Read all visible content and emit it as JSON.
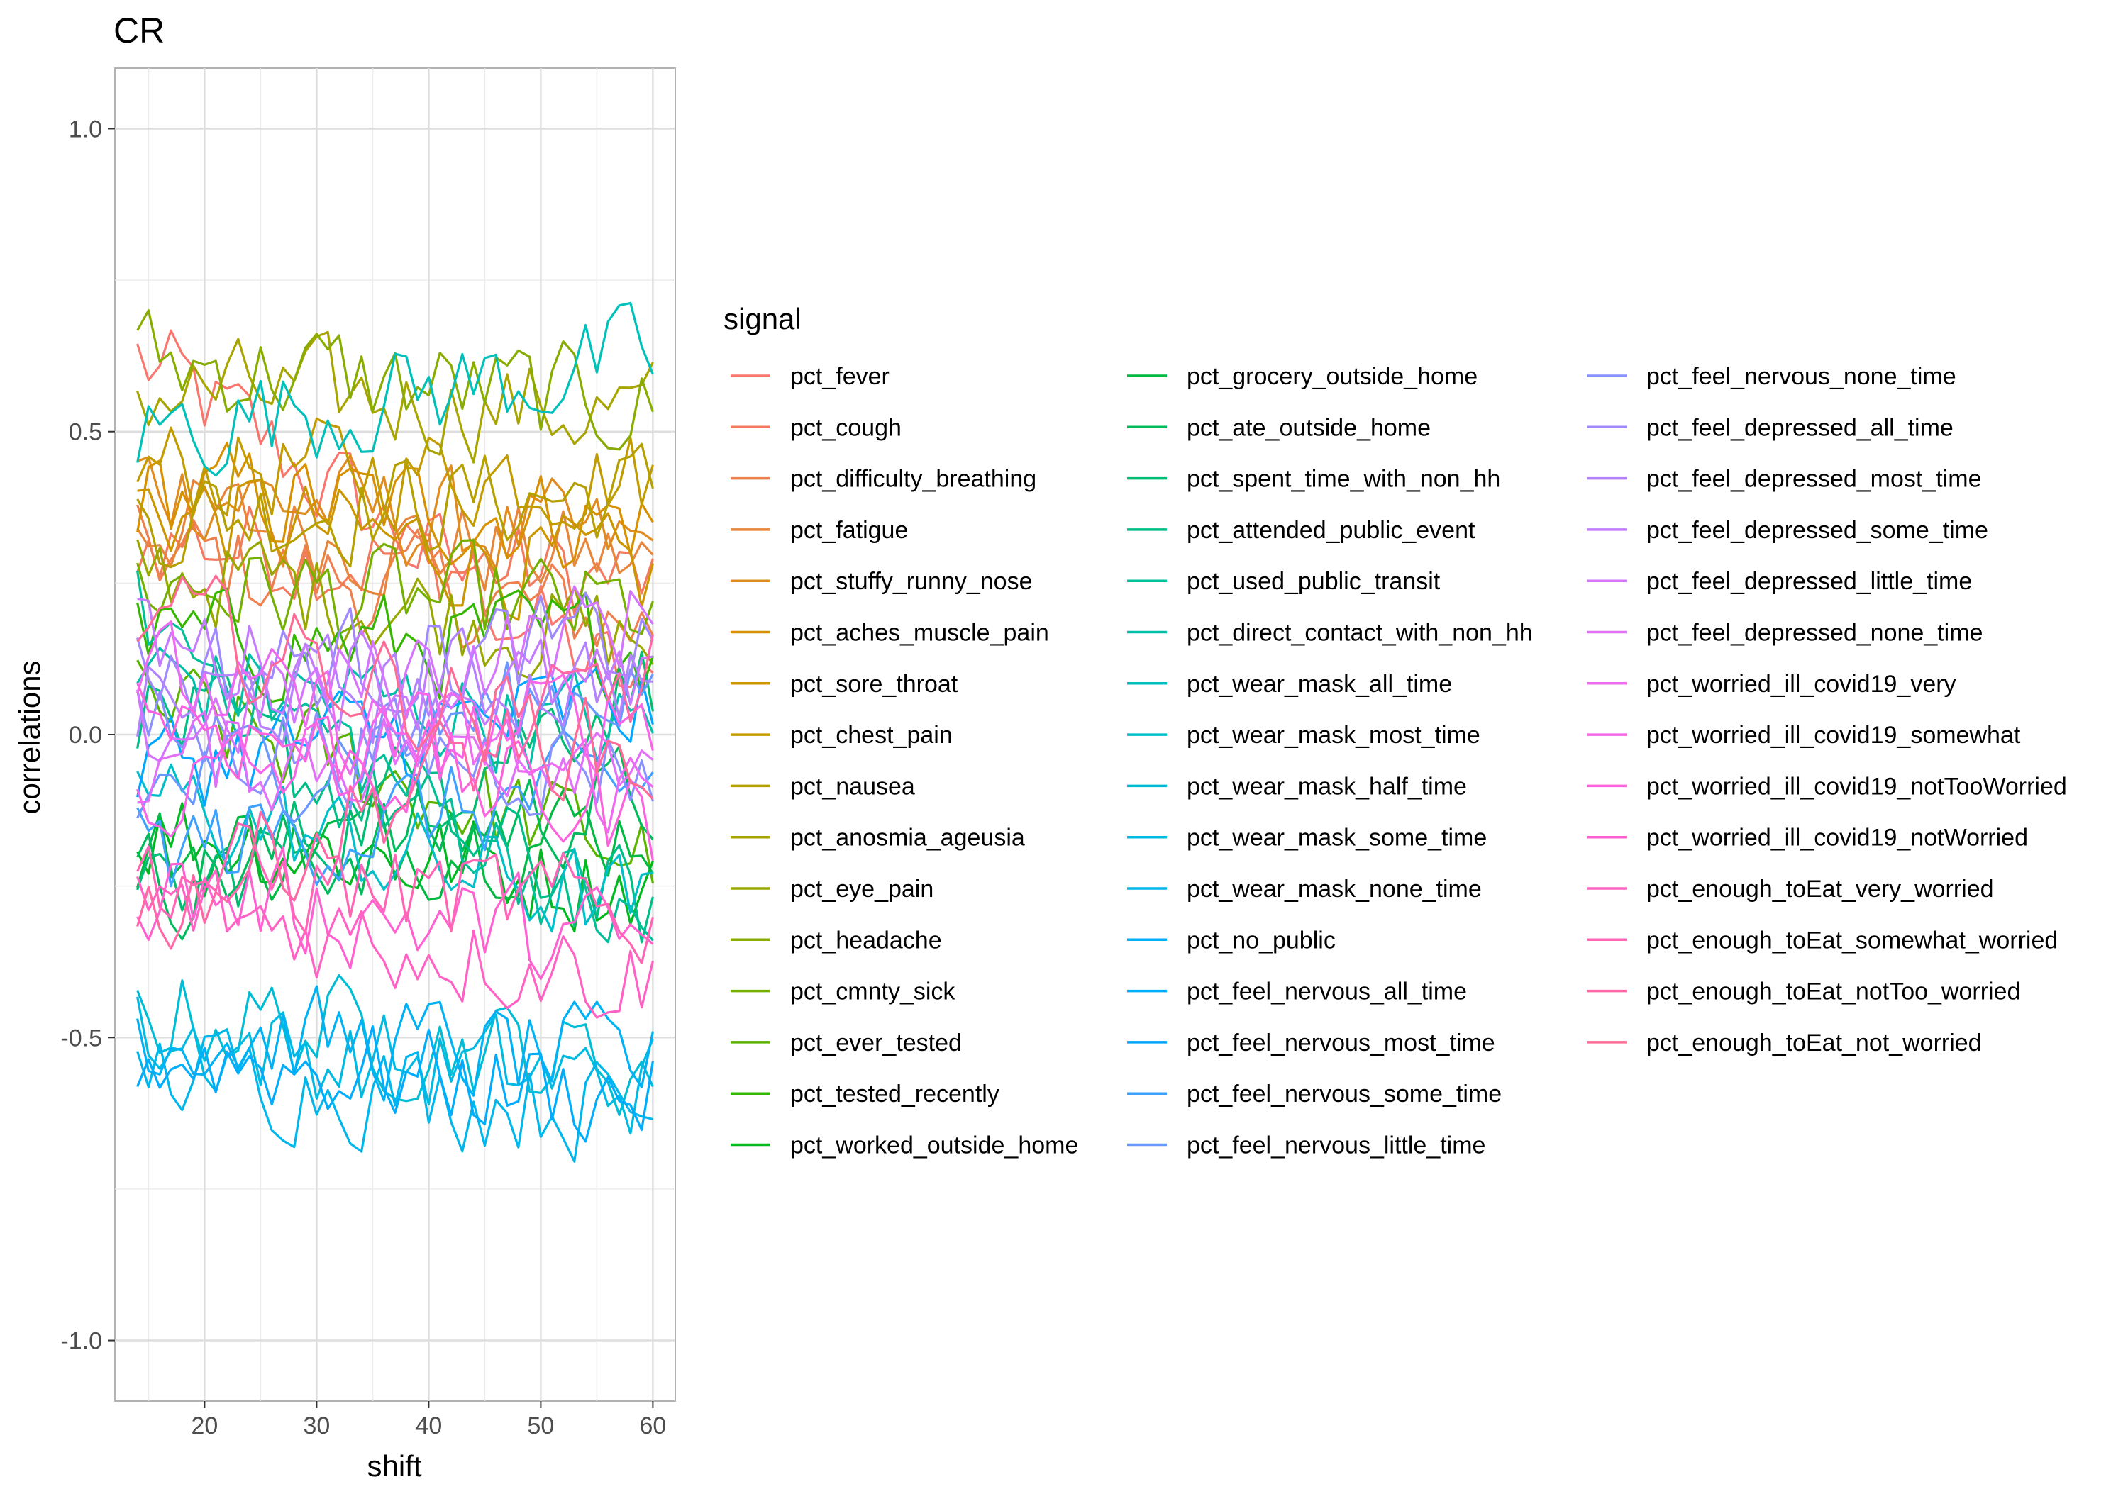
{
  "chart_data": {
    "type": "line",
    "title": "CR",
    "xlabel": "shift",
    "ylabel": "correlations",
    "xlim": [
      12,
      62
    ],
    "ylim": [
      -1.1,
      1.1
    ],
    "x_ticks": [
      20,
      30,
      40,
      50,
      60
    ],
    "y_ticks": [
      1.0,
      0.5,
      0.0,
      -0.5,
      -1.0
    ],
    "y_tick_labels": [
      "1.0",
      "0.5",
      "0.0",
      "-0.5",
      "-1.0"
    ],
    "grid": true,
    "legend_title": "signal",
    "legend_position": "right",
    "x": [
      14,
      15,
      16,
      17,
      18,
      19,
      20,
      21,
      22,
      23,
      24,
      25,
      26,
      27,
      28,
      29,
      30,
      31,
      32,
      33,
      34,
      35,
      36,
      37,
      38,
      39,
      40,
      41,
      42,
      43,
      44,
      45,
      46,
      47,
      48,
      49,
      50,
      51,
      52,
      53,
      54,
      55,
      56,
      57,
      58,
      59,
      60
    ],
    "series": [
      {
        "name": "pct_fever",
        "base": [
          0.62,
          0.05
        ],
        "color": "#F8766D"
      },
      {
        "name": "pct_cough",
        "base": [
          0.33,
          0.25
        ],
        "color": "#F47A5F"
      },
      {
        "name": "pct_difficulty_breathing",
        "base": [
          0.3,
          0.18
        ],
        "color": "#EE7F4E"
      },
      {
        "name": "pct_fatigue",
        "base": [
          0.36,
          0.28
        ],
        "color": "#E7853A"
      },
      {
        "name": "pct_stuffy_runny_nose",
        "base": [
          0.42,
          0.3
        ],
        "color": "#DF8B1F"
      },
      {
        "name": "pct_aches_muscle_pain",
        "base": [
          0.4,
          0.35
        ],
        "color": "#D69000"
      },
      {
        "name": "pct_sore_throat",
        "base": [
          0.38,
          0.25
        ],
        "color": "#CC9600"
      },
      {
        "name": "pct_chest_pain",
        "base": [
          0.44,
          0.43
        ],
        "color": "#C19B00"
      },
      {
        "name": "pct_nausea",
        "base": [
          0.36,
          0.4
        ],
        "color": "#B5A000"
      },
      {
        "name": "pct_anosmia_ageusia",
        "base": [
          0.57,
          0.53
        ],
        "color": "#A8A400"
      },
      {
        "name": "pct_eye_pain",
        "base": [
          0.28,
          0.15
        ],
        "color": "#99A800"
      },
      {
        "name": "pct_headache",
        "base": [
          0.62,
          0.54
        ],
        "color": "#88AC00"
      },
      {
        "name": "pct_cmnty_sick",
        "base": [
          0.25,
          0.2
        ],
        "color": "#74B000"
      },
      {
        "name": "pct_ever_tested",
        "base": [
          0.05,
          -0.2
        ],
        "color": "#5BB300"
      },
      {
        "name": "pct_tested_recently",
        "base": [
          0.15,
          0.15
        ],
        "color": "#35B600"
      },
      {
        "name": "pct_worked_outside_home",
        "base": [
          -0.15,
          -0.25
        ],
        "color": "#00B81F"
      },
      {
        "name": "pct_grocery_outside_home",
        "base": [
          -0.2,
          -0.15
        ],
        "color": "#00BA42"
      },
      {
        "name": "pct_ate_outside_home",
        "base": [
          -0.25,
          -0.1
        ],
        "color": "#00BB5C"
      },
      {
        "name": "pct_spent_time_with_non_hh",
        "base": [
          -0.3,
          0.1
        ],
        "color": "#00BD73"
      },
      {
        "name": "pct_attended_public_event",
        "base": [
          0.05,
          -0.3
        ],
        "color": "#00BE87"
      },
      {
        "name": "pct_used_public_transit",
        "base": [
          0.2,
          -0.35
        ],
        "color": "#00BF99"
      },
      {
        "name": "pct_direct_contact_with_non_hh",
        "base": [
          0.1,
          0.0
        ],
        "color": "#00C0AA"
      },
      {
        "name": "pct_wear_mask_all_time",
        "base": [
          0.5,
          0.62
        ],
        "color": "#00C0BA"
      },
      {
        "name": "pct_wear_mask_most_time",
        "base": [
          -0.1,
          -0.3
        ],
        "color": "#00BFC8"
      },
      {
        "name": "pct_wear_mask_half_time",
        "base": [
          -0.45,
          -0.55
        ],
        "color": "#00BDD5"
      },
      {
        "name": "pct_wear_mask_some_time",
        "base": [
          -0.5,
          -0.58
        ],
        "color": "#00BAE1"
      },
      {
        "name": "pct_wear_mask_none_time",
        "base": [
          -0.55,
          -0.62
        ],
        "color": "#00B6EB"
      },
      {
        "name": "pct_no_public",
        "base": [
          -0.48,
          -0.55
        ],
        "color": "#00B1F4"
      },
      {
        "name": "pct_feel_nervous_all_time",
        "base": [
          -0.52,
          -0.6
        ],
        "color": "#00ACFC"
      },
      {
        "name": "pct_feel_nervous_most_time",
        "base": [
          -0.05,
          0.05
        ],
        "color": "#00A6FF"
      },
      {
        "name": "pct_feel_nervous_some_time",
        "base": [
          -0.2,
          -0.08
        ],
        "color": "#3EA0FF"
      },
      {
        "name": "pct_feel_nervous_little_time",
        "base": [
          -0.1,
          0.1
        ],
        "color": "#6B98FF"
      },
      {
        "name": "pct_feel_nervous_none_time",
        "base": [
          0.0,
          -0.05
        ],
        "color": "#8991FF"
      },
      {
        "name": "pct_feel_depressed_all_time",
        "base": [
          0.1,
          0.15
        ],
        "color": "#A089FF"
      },
      {
        "name": "pct_feel_depressed_most_time",
        "base": [
          0.05,
          0.1
        ],
        "color": "#B482FF"
      },
      {
        "name": "pct_feel_depressed_some_time",
        "base": [
          0.15,
          0.05
        ],
        "color": "#C57BFF"
      },
      {
        "name": "pct_feel_depressed_little_time",
        "base": [
          0.0,
          0.2
        ],
        "color": "#D575FE"
      },
      {
        "name": "pct_feel_depressed_none_time",
        "base": [
          -0.05,
          0.0
        ],
        "color": "#E26FF8"
      },
      {
        "name": "pct_worried_ill_covid19_very",
        "base": [
          0.1,
          -0.1
        ],
        "color": "#EE6AF1"
      },
      {
        "name": "pct_worried_ill_covid19_somewhat",
        "base": [
          -0.1,
          0.05
        ],
        "color": "#F866E8"
      },
      {
        "name": "pct_worried_ill_covid19_notTooWorried",
        "base": [
          0.05,
          -0.15
        ],
        "color": "#FD62DD"
      },
      {
        "name": "pct_worried_ill_covid19_notWorried",
        "base": [
          -0.25,
          -0.35
        ],
        "color": "#FF61D1"
      },
      {
        "name": "pct_enough_toEat_very_worried",
        "base": [
          -0.28,
          -0.4
        ],
        "color": "#FF62C4"
      },
      {
        "name": "pct_enough_toEat_somewhat_worried",
        "base": [
          -0.22,
          -0.3
        ],
        "color": "#FF64B5"
      },
      {
        "name": "pct_enough_toEat_notToo_worried",
        "base": [
          -0.3,
          0.1
        ],
        "color": "#FF67A6"
      },
      {
        "name": "pct_enough_toEat_not_worried",
        "base": [
          0.2,
          -0.05
        ],
        "color": "#FE6C96"
      }
    ]
  }
}
